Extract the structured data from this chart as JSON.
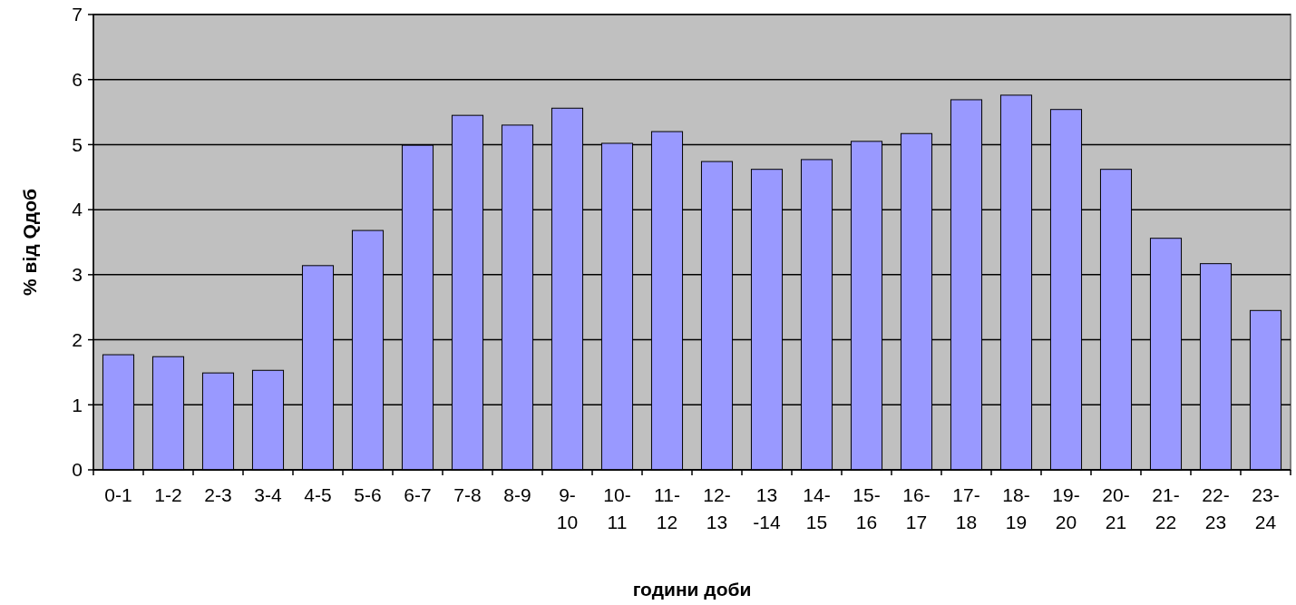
{
  "chart_data": {
    "type": "bar",
    "xlabel": "години доби",
    "ylabel": "% від Qдоб",
    "categories": [
      "0-1",
      "1-2",
      "2-3",
      "3-4",
      "4-5",
      "5-6",
      "6-7",
      "7-8",
      "8-9",
      "9-10",
      "10-11",
      "11-12",
      "12-13",
      "13 -14",
      "14-15",
      "15-16",
      "16-17",
      "17-18",
      "18-19",
      "19-20",
      "20-21",
      "21-22",
      "22-23",
      "23-24"
    ],
    "values": [
      1.77,
      1.74,
      1.49,
      1.53,
      3.14,
      3.68,
      4.99,
      5.45,
      5.3,
      5.56,
      5.02,
      5.2,
      4.74,
      4.62,
      4.77,
      5.05,
      5.17,
      5.69,
      5.76,
      5.54,
      4.62,
      3.56,
      3.17,
      2.45
    ],
    "color": "#9999ff",
    "ylim": [
      0,
      7
    ],
    "yticks": [
      0,
      1,
      2,
      3,
      4,
      5,
      6,
      7
    ],
    "grid": "y"
  }
}
